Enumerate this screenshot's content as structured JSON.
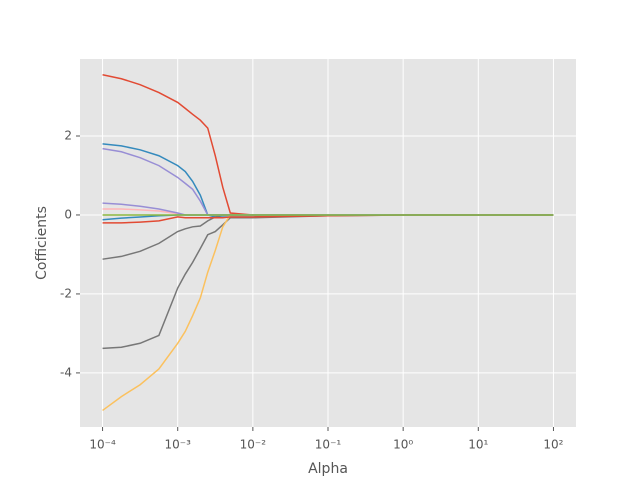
{
  "chart_data": {
    "type": "line",
    "x_label": "Alpha",
    "y_label": "Cofficients",
    "log_x": true,
    "grid": true,
    "xlim": [
      5.01e-05,
      199.5
    ],
    "ylim": [
      -5.37,
      3.95
    ],
    "xticks": [
      {
        "value": 0.0001,
        "label": "10⁻⁴"
      },
      {
        "value": 0.001,
        "label": "10⁻³"
      },
      {
        "value": 0.01,
        "label": "10⁻²"
      },
      {
        "value": 0.1,
        "label": "10⁻¹"
      },
      {
        "value": 1,
        "label": "10⁰"
      },
      {
        "value": 10,
        "label": "10¹"
      },
      {
        "value": 100,
        "label": "10²"
      }
    ],
    "yticks": [
      -4,
      -2,
      0,
      2
    ],
    "x": [
      0.0001,
      0.000178,
      0.000316,
      0.000562,
      0.001,
      0.00126,
      0.00158,
      0.002,
      0.00251,
      0.00316,
      0.00398,
      0.00501,
      0.01,
      0.1,
      1,
      10,
      100
    ],
    "series": [
      {
        "color": "#E24A33",
        "values": [
          3.55,
          3.45,
          3.3,
          3.1,
          2.85,
          2.7,
          2.55,
          2.4,
          2.2,
          1.5,
          0.7,
          0.05,
          0,
          0,
          0,
          0,
          0
        ]
      },
      {
        "color": "#348ABD",
        "values": [
          1.8,
          1.75,
          1.65,
          1.5,
          1.25,
          1.1,
          0.85,
          0.5,
          0,
          -0.05,
          -0.05,
          -0.05,
          -0.05,
          0,
          0,
          0,
          0
        ]
      },
      {
        "color": "#988ED5",
        "values": [
          1.68,
          1.6,
          1.45,
          1.25,
          0.95,
          0.8,
          0.65,
          0.35,
          0,
          0,
          0,
          0,
          0,
          0,
          0,
          0,
          0
        ]
      },
      {
        "color": "#777777",
        "values": [
          -1.12,
          -1.05,
          -0.92,
          -0.72,
          -0.42,
          -0.35,
          -0.3,
          -0.28,
          -0.15,
          -0.05,
          0,
          0,
          0,
          0,
          0,
          0,
          0
        ]
      },
      {
        "color": "#777777",
        "values": [
          -3.38,
          -3.35,
          -3.25,
          -3.05,
          -1.85,
          -1.5,
          -1.2,
          -0.85,
          -0.5,
          -0.42,
          -0.25,
          -0.07,
          -0.07,
          -0.02,
          0,
          0,
          0
        ]
      },
      {
        "color": "#FBC15E",
        "values": [
          -4.95,
          -4.6,
          -4.3,
          -3.9,
          -3.25,
          -2.95,
          -2.55,
          -2.1,
          -1.45,
          -0.9,
          -0.3,
          0,
          0,
          0,
          0,
          0,
          0
        ]
      },
      {
        "color": "#FFB5B8",
        "values": [
          0.15,
          0.15,
          0.13,
          0.1,
          0.03,
          0,
          0,
          0,
          0,
          0,
          0,
          0,
          0,
          0,
          0,
          0,
          0
        ]
      },
      {
        "color": "#988ED5",
        "values": [
          0.3,
          0.27,
          0.22,
          0.15,
          0.05,
          0,
          0,
          0,
          0,
          0,
          0,
          0,
          0,
          0,
          0,
          0,
          0
        ]
      },
      {
        "color": "#E24A33",
        "values": [
          -0.2,
          -0.2,
          -0.18,
          -0.15,
          -0.05,
          -0.07,
          -0.07,
          -0.07,
          -0.07,
          -0.07,
          -0.07,
          -0.05,
          -0.05,
          -0.02,
          0,
          0,
          0
        ]
      },
      {
        "color": "#348ABD",
        "values": [
          -0.12,
          -0.08,
          -0.05,
          -0.02,
          0,
          0,
          0,
          0,
          0,
          0,
          0,
          0,
          0,
          0,
          0,
          0,
          0
        ]
      },
      {
        "color": "#8EBA42",
        "values": [
          0,
          0,
          0,
          0,
          0,
          0,
          0,
          0,
          0,
          0,
          0,
          0,
          0,
          0,
          0,
          0,
          0
        ]
      }
    ]
  }
}
